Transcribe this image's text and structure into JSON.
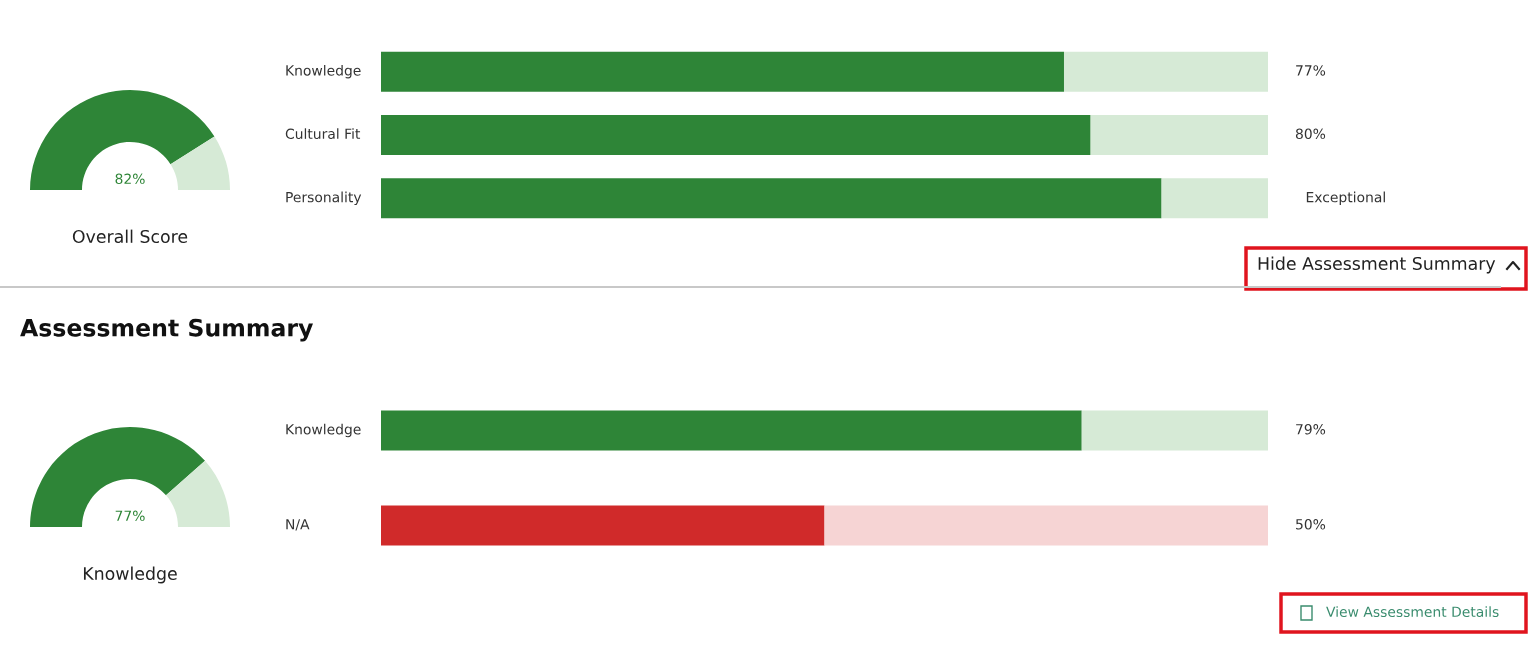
{
  "chart_data": [
    {
      "type": "donut",
      "categories": [
        null,
        null
      ],
      "values": [
        82,
        18
      ],
      "colors": [
        "#2e8537",
        "#d6ead6"
      ],
      "value_labels": [
        "82%",
        null
      ],
      "xlabel": "Overall Score"
    },
    {
      "type": "bar",
      "orientation": "horizontal",
      "stacked": true,
      "categories": [
        "Knowledge",
        "Cultural Fit",
        "Personality"
      ],
      "xlim": [
        0,
        100
      ],
      "tick_labels": false,
      "annotations": [
        "Hide Assessment Summary",
        {
          "text": "Exceptional",
          "x": 100,
          "y": "Personality"
        }
      ],
      "series": [
        {
          "colors": [
            "#2e8537",
            "#2e8537",
            "#2e8537"
          ],
          "values": [
            77,
            80,
            88
          ],
          "value_labels": [
            "77%",
            "80%",
            null
          ]
        },
        {
          "colors": [
            "#d6ead6",
            "#d6ead6",
            "#d6ead6"
          ],
          "values": [
            23,
            20,
            12
          ]
        }
      ]
    },
    {
      "type": "donut",
      "title": "Assessment Summary",
      "categories": [
        null,
        null
      ],
      "values": [
        77,
        23
      ],
      "colors": [
        "#2e8537",
        "#d6ead6"
      ],
      "value_labels": [
        "77%",
        null
      ],
      "xlabel": "Knowledge"
    },
    {
      "type": "bar",
      "orientation": "horizontal",
      "stacked": true,
      "categories": [
        "Knowledge",
        "N/A"
      ],
      "xlim": [
        0,
        100
      ],
      "tick_labels": false,
      "annotations": [
        "View Assessment Details"
      ],
      "series": [
        {
          "colors": [
            "#2e8537",
            "#d02a2a"
          ],
          "values": [
            79,
            50
          ],
          "value_labels": [
            "79%",
            "50%"
          ]
        },
        {
          "colors": [
            "#d6ead6",
            "#f6d4d4"
          ],
          "values": [
            21,
            50
          ]
        }
      ]
    }
  ]
}
